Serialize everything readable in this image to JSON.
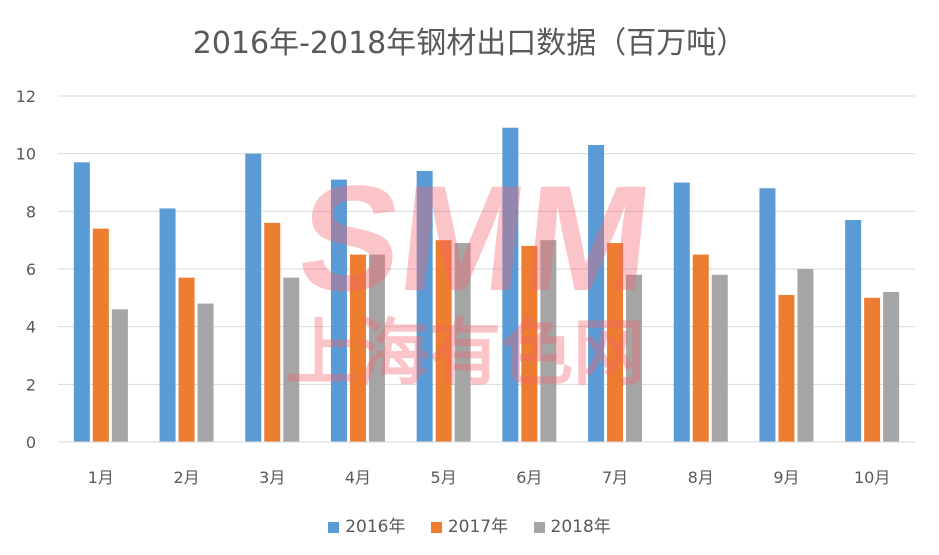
{
  "chart_data": {
    "type": "bar",
    "title": "2016年-2018年钢材出口数据（百万吨）",
    "categories": [
      "1月",
      "2月",
      "3月",
      "4月",
      "5月",
      "6月",
      "7月",
      "8月",
      "9月",
      "10月"
    ],
    "ylim": [
      0,
      12
    ],
    "yticks": [
      0,
      2,
      4,
      6,
      8,
      10,
      12
    ],
    "grid": true,
    "legend_position": "bottom",
    "series": [
      {
        "name": "2016年",
        "color": "#5B9BD5",
        "values": [
          9.7,
          8.1,
          10.0,
          9.1,
          9.4,
          10.9,
          10.3,
          9.0,
          8.8,
          7.7
        ]
      },
      {
        "name": "2017年",
        "color": "#ED7D31",
        "values": [
          7.4,
          5.7,
          7.6,
          6.5,
          7.0,
          6.8,
          6.9,
          6.5,
          5.1,
          5.0
        ]
      },
      {
        "name": "2018年",
        "color": "#A5A5A5",
        "values": [
          4.6,
          4.8,
          5.7,
          6.5,
          6.9,
          7.0,
          5.8,
          5.8,
          6.0,
          5.2
        ]
      }
    ]
  },
  "watermark": {
    "logo": "SMM",
    "text": "上海有色网"
  }
}
